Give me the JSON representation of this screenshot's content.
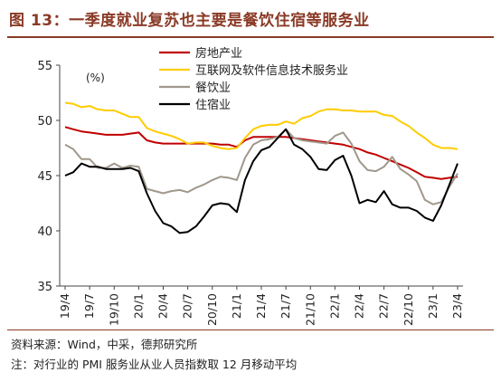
{
  "header": {
    "title": "图 13：一季度就业复苏也主要是餐饮住宿等服务业"
  },
  "footer": {
    "source": "资料来源：Wind，中采，德邦研究所",
    "note": "注：对行业的 PMI 服务业从业人员指数取 12 月移动平均"
  },
  "chart_data": {
    "type": "line",
    "unit_label": "(%)",
    "ylim": [
      35,
      55
    ],
    "yticks": [
      35,
      40,
      45,
      50,
      55
    ],
    "grid": false,
    "legend_position": "top-right",
    "x": [
      "19/4",
      "19/5",
      "19/6",
      "19/7",
      "19/8",
      "19/9",
      "19/10",
      "19/11",
      "19/12",
      "20/1",
      "20/2",
      "20/3",
      "20/4",
      "20/5",
      "20/6",
      "20/7",
      "20/8",
      "20/9",
      "20/10",
      "20/11",
      "20/12",
      "21/1",
      "21/2",
      "21/3",
      "21/4",
      "21/5",
      "21/6",
      "21/7",
      "21/8",
      "21/9",
      "21/10",
      "21/11",
      "21/12",
      "22/1",
      "22/2",
      "22/3",
      "22/4",
      "22/5",
      "22/6",
      "22/7",
      "22/8",
      "22/9",
      "22/10",
      "22/11",
      "22/12",
      "23/1",
      "23/2",
      "23/3",
      "23/4"
    ],
    "xtick_labels": [
      "19/4",
      "19/7",
      "19/10",
      "20/1",
      "20/4",
      "20/7",
      "20/10",
      "21/1",
      "21/4",
      "21/7",
      "21/10",
      "22/1",
      "22/4",
      "22/7",
      "22/10",
      "23/1",
      "23/4"
    ],
    "series": [
      {
        "name": "房地产业",
        "color": "#c00000",
        "values": [
          49.4,
          49.2,
          49.0,
          48.9,
          48.8,
          48.7,
          48.7,
          48.7,
          48.8,
          48.9,
          48.2,
          48.0,
          47.9,
          47.9,
          47.9,
          47.9,
          47.9,
          47.9,
          47.9,
          47.8,
          47.8,
          47.6,
          48.2,
          48.5,
          48.5,
          48.5,
          48.5,
          48.5,
          48.4,
          48.3,
          48.2,
          48.1,
          48.0,
          47.9,
          47.8,
          47.6,
          47.4,
          47.1,
          46.9,
          46.6,
          46.3,
          46.0,
          45.7,
          45.3,
          44.9,
          44.8,
          44.7,
          44.8,
          44.9
        ]
      },
      {
        "name": "互联网及软件信息技术服务业",
        "color": "#ffcc00",
        "values": [
          51.6,
          51.5,
          51.2,
          51.3,
          51.0,
          50.9,
          50.9,
          50.6,
          50.3,
          50.3,
          49.3,
          49.0,
          48.8,
          48.6,
          48.3,
          47.9,
          48.0,
          48.0,
          47.7,
          47.5,
          47.4,
          47.5,
          48.4,
          49.2,
          49.5,
          49.6,
          49.6,
          49.9,
          49.7,
          50.2,
          50.4,
          50.8,
          51.0,
          51.0,
          50.9,
          50.9,
          50.8,
          50.8,
          50.8,
          50.5,
          50.4,
          49.9,
          49.5,
          48.9,
          48.4,
          47.8,
          47.5,
          47.5,
          47.4
        ]
      },
      {
        "name": "餐饮业",
        "color": "#a0988c",
        "values": [
          47.8,
          47.4,
          46.5,
          46.5,
          45.7,
          45.7,
          46.1,
          45.7,
          45.9,
          45.8,
          43.8,
          43.6,
          43.4,
          43.6,
          43.7,
          43.5,
          43.9,
          44.2,
          44.6,
          44.9,
          44.8,
          44.6,
          46.6,
          47.8,
          48.2,
          48.3,
          48.5,
          49.2,
          48.4,
          48.2,
          48.1,
          48.0,
          47.9,
          48.6,
          48.9,
          47.9,
          46.3,
          45.5,
          45.4,
          45.8,
          46.7,
          45.6,
          45.1,
          44.5,
          42.8,
          42.4,
          42.6,
          44.0,
          45.2
        ]
      },
      {
        "name": "住宿业",
        "color": "#000000",
        "values": [
          45.0,
          45.3,
          46.1,
          45.8,
          45.8,
          45.6,
          45.6,
          45.6,
          45.7,
          45.4,
          43.4,
          41.8,
          40.7,
          40.4,
          39.8,
          39.9,
          40.4,
          41.3,
          42.3,
          42.5,
          42.4,
          41.7,
          44.6,
          46.3,
          47.3,
          47.6,
          48.4,
          49.2,
          47.8,
          47.4,
          46.7,
          45.6,
          45.5,
          46.4,
          46.8,
          45.0,
          42.5,
          42.8,
          42.6,
          43.6,
          42.4,
          42.1,
          42.1,
          41.8,
          41.2,
          40.9,
          42.3,
          44.2,
          46.1
        ]
      }
    ]
  }
}
